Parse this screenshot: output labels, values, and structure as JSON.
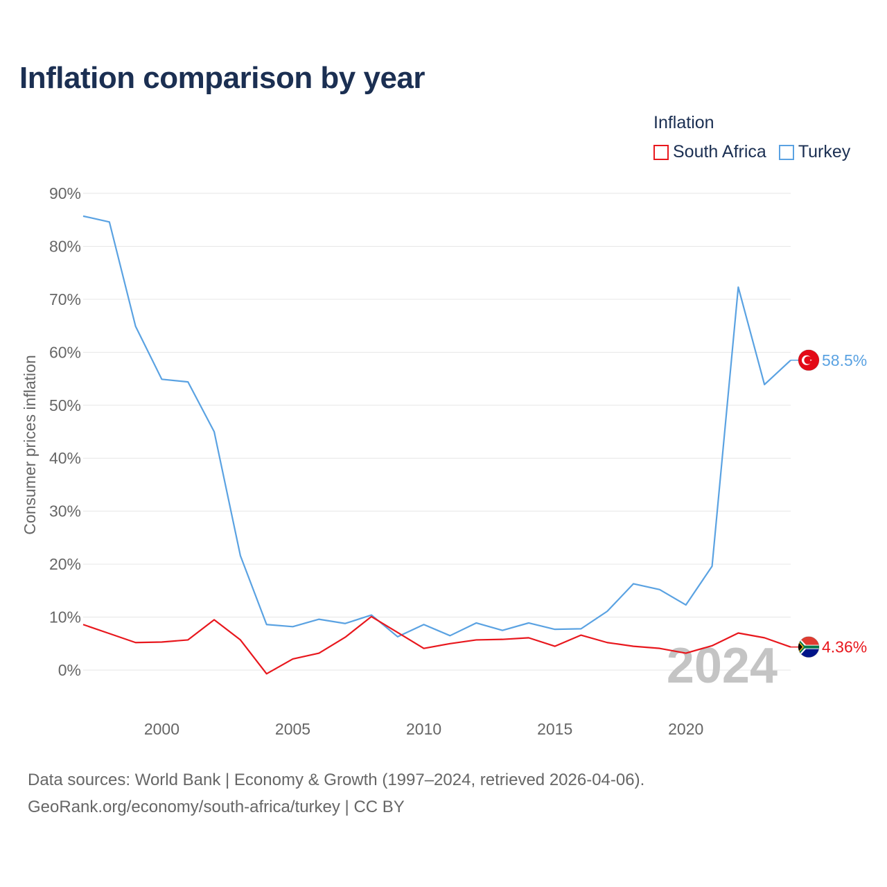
{
  "title": "Inflation comparison by year",
  "legend": {
    "title": "Inflation",
    "items": [
      {
        "label": "South Africa",
        "color": "#e8171d"
      },
      {
        "label": "Turkey",
        "color": "#5aa2e2"
      }
    ]
  },
  "footer": {
    "line1": "Data sources: World Bank | Economy & Growth (1997–2024, retrieved 2026-04-06).",
    "line2": "GeoRank.org/economy/south-africa/turkey | CC BY"
  },
  "chart_data": {
    "type": "line",
    "title": "Inflation comparison by year",
    "xlabel": "",
    "ylabel": "Consumer prices inflation",
    "xlim": [
      1997,
      2024
    ],
    "ylim": [
      -10,
      90
    ],
    "y_ticks": [
      0,
      10,
      20,
      30,
      40,
      50,
      60,
      70,
      80,
      90
    ],
    "y_tick_labels": [
      "0%",
      "10%",
      "20%",
      "30%",
      "40%",
      "50%",
      "60%",
      "70%",
      "80%",
      "90%"
    ],
    "x_ticks": [
      2000,
      2005,
      2010,
      2015,
      2020
    ],
    "x_tick_labels": [
      "2000",
      "2005",
      "2010",
      "2015",
      "2020"
    ],
    "watermark_year": "2024",
    "x": [
      1997,
      1998,
      1999,
      2000,
      2001,
      2002,
      2003,
      2004,
      2005,
      2006,
      2007,
      2008,
      2009,
      2010,
      2011,
      2012,
      2013,
      2014,
      2015,
      2016,
      2017,
      2018,
      2019,
      2020,
      2021,
      2022,
      2023,
      2024
    ],
    "series": [
      {
        "name": "Turkey",
        "color": "#5aa2e2",
        "end_label": "58.5%",
        "flag": "turkey-flag-icon",
        "values": [
          85.7,
          84.6,
          64.9,
          54.9,
          54.4,
          45.0,
          21.6,
          8.6,
          8.2,
          9.6,
          8.8,
          10.4,
          6.3,
          8.6,
          6.5,
          8.9,
          7.5,
          8.9,
          7.7,
          7.8,
          11.1,
          16.3,
          15.2,
          12.3,
          19.6,
          72.3,
          53.9,
          58.5
        ]
      },
      {
        "name": "South Africa",
        "color": "#e8171d",
        "end_label": "4.36%",
        "flag": "south-africa-flag-icon",
        "values": [
          8.6,
          6.9,
          5.2,
          5.3,
          5.7,
          9.5,
          5.7,
          -0.7,
          2.1,
          3.2,
          6.2,
          10.1,
          7.1,
          4.1,
          5.0,
          5.7,
          5.8,
          6.1,
          4.5,
          6.6,
          5.2,
          4.5,
          4.1,
          3.2,
          4.6,
          7.0,
          6.1,
          4.36
        ]
      }
    ]
  }
}
